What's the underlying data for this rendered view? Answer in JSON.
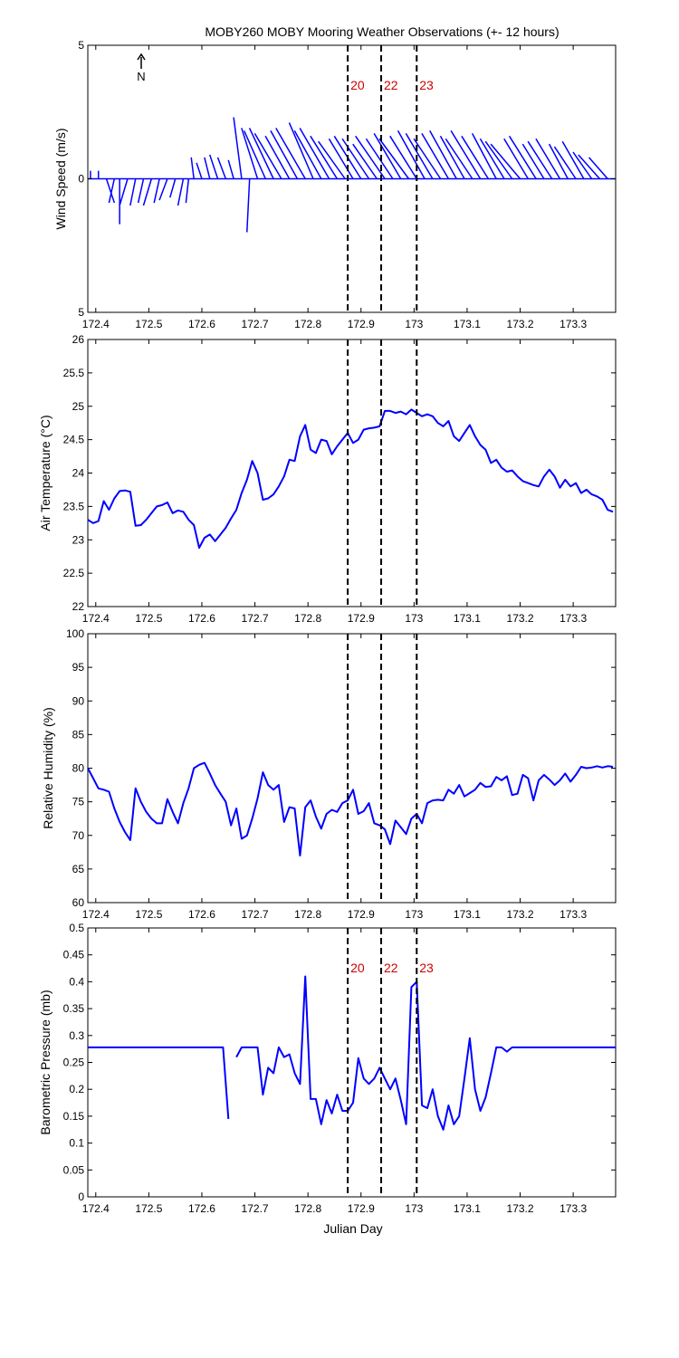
{
  "figure": {
    "title": "MOBY260 MOBY Mooring Weather Observations (+- 12 hours)",
    "north_label": "N",
    "xlabel": "Julian Day"
  },
  "chart_data": [
    {
      "type": "quiver",
      "ylabel": "Wind Speed (m/s)",
      "xlim": [
        172.385,
        173.38
      ],
      "ylim": [
        -5,
        5
      ],
      "yticks": [
        "5",
        "0",
        "5"
      ],
      "xticks": [
        172.4,
        172.5,
        172.6,
        172.7,
        172.8,
        172.9,
        173,
        173.1,
        173.2,
        173.3
      ],
      "marker_labels": [
        "20",
        "22",
        "23"
      ],
      "marker_x": [
        172.875,
        172.938,
        173.005
      ],
      "wind": {
        "x": [
          172.39,
          172.405,
          172.42,
          172.435,
          172.445,
          172.46,
          172.475,
          172.49,
          172.505,
          172.52,
          172.535,
          172.55,
          172.565,
          172.575,
          172.585,
          172.6,
          172.615,
          172.63,
          172.645,
          172.66,
          172.675,
          172.69,
          172.705,
          172.72,
          172.735,
          172.75,
          172.765,
          172.78,
          172.795,
          172.81,
          172.825,
          172.84,
          172.855,
          172.87,
          172.885,
          172.9,
          172.915,
          172.93,
          172.945,
          172.96,
          172.975,
          172.99,
          173.005,
          173.02,
          173.035,
          173.05,
          173.065,
          173.08,
          173.095,
          173.11,
          173.125,
          173.14,
          173.155,
          173.17,
          173.185,
          173.2,
          173.215,
          173.23,
          173.245,
          173.26,
          173.275,
          173.29,
          173.305,
          173.32,
          173.335,
          173.35,
          173.365
        ],
        "u": [
          0,
          0,
          0.3,
          -0.2,
          0,
          -0.3,
          -0.2,
          -0.2,
          -0.3,
          -0.2,
          -0.3,
          -0.2,
          -0.2,
          -0.1,
          -0.1,
          -0.2,
          -0.2,
          -0.3,
          -0.3,
          -0.2,
          -0.3,
          -0.1,
          -0.6,
          -0.8,
          -0.9,
          -1.0,
          -0.9,
          -1.0,
          -1.1,
          -0.9,
          -1.0,
          -1.1,
          -1.0,
          -1.0,
          -0.9,
          -1.0,
          -1.0,
          -0.9,
          -1.1,
          -1.0,
          -1.0,
          -1.1,
          -1.0,
          -1.0,
          -1.0,
          -1.0,
          -1.0,
          -1.0,
          -0.9,
          -1.0,
          -1.1,
          -1.0,
          -0.9,
          -0.9,
          -1.0,
          -1.1,
          -0.9,
          -1.0,
          -0.8,
          -0.9,
          -0.9,
          -0.7,
          -0.8,
          -0.8,
          -0.7,
          -0.8,
          -0.7
        ],
        "v": [
          0.3,
          0.3,
          -0.9,
          -0.9,
          -1.7,
          -1.0,
          -1.0,
          -0.9,
          -1.0,
          -0.9,
          -0.8,
          -0.7,
          -1.0,
          -0.9,
          0.8,
          0.6,
          0.8,
          0.9,
          0.8,
          0.7,
          2.3,
          -2.0,
          1.9,
          1.8,
          1.9,
          1.7,
          1.6,
          1.8,
          1.9,
          2.1,
          1.8,
          1.9,
          1.6,
          1.4,
          1.5,
          1.6,
          1.5,
          1.3,
          1.6,
          1.5,
          1.7,
          1.5,
          1.6,
          1.8,
          1.7,
          1.5,
          1.7,
          1.8,
          1.6,
          1.5,
          1.8,
          1.6,
          1.7,
          1.5,
          1.4,
          1.3,
          1.5,
          1.6,
          1.3,
          1.4,
          1.5,
          1.3,
          1.2,
          1.4,
          1.0,
          0.9,
          0.8
        ]
      }
    },
    {
      "type": "line",
      "ylabel": "Air Temperature (°C)",
      "xlim": [
        172.385,
        173.38
      ],
      "ylim": [
        22,
        26
      ],
      "yticks": [
        "22",
        "22.5",
        "23",
        "23.5",
        "24",
        "24.5",
        "25",
        "25.5",
        "26"
      ],
      "xticks": [
        172.4,
        172.5,
        172.6,
        172.7,
        172.8,
        172.9,
        173,
        173.1,
        173.2,
        173.3
      ],
      "marker_x": [
        172.875,
        172.938,
        173.005
      ],
      "x": [
        172.385,
        172.395,
        172.405,
        172.415,
        172.425,
        172.435,
        172.445,
        172.455,
        172.465,
        172.475,
        172.485,
        172.495,
        172.505,
        172.515,
        172.525,
        172.535,
        172.545,
        172.555,
        172.565,
        172.575,
        172.585,
        172.595,
        172.605,
        172.615,
        172.625,
        172.635,
        172.645,
        172.655,
        172.665,
        172.675,
        172.685,
        172.695,
        172.705,
        172.715,
        172.725,
        172.735,
        172.745,
        172.755,
        172.765,
        172.775,
        172.785,
        172.795,
        172.805,
        172.815,
        172.825,
        172.835,
        172.845,
        172.855,
        172.865,
        172.875,
        172.885,
        172.895,
        172.905,
        172.915,
        172.925,
        172.935,
        172.945,
        172.955,
        172.965,
        172.975,
        172.985,
        172.995,
        173.005,
        173.015,
        173.025,
        173.035,
        173.045,
        173.055,
        173.065,
        173.075,
        173.085,
        173.095,
        173.105,
        173.115,
        173.125,
        173.135,
        173.145,
        173.155,
        173.165,
        173.175,
        173.185,
        173.195,
        173.205,
        173.215,
        173.225,
        173.235,
        173.245,
        173.255,
        173.265,
        173.275,
        173.285,
        173.295,
        173.305,
        173.315,
        173.325,
        173.335,
        173.345,
        173.355,
        173.365,
        173.375
      ],
      "y": [
        23.3,
        23.25,
        23.28,
        23.58,
        23.45,
        23.62,
        23.73,
        23.74,
        23.72,
        23.21,
        23.22,
        23.3,
        23.4,
        23.5,
        23.52,
        23.56,
        23.4,
        23.44,
        23.42,
        23.3,
        23.22,
        22.88,
        23.03,
        23.08,
        22.98,
        23.08,
        23.18,
        23.32,
        23.45,
        23.7,
        23.9,
        24.18,
        24.0,
        23.6,
        23.62,
        23.68,
        23.8,
        23.95,
        24.2,
        24.18,
        24.55,
        24.72,
        24.35,
        24.3,
        24.5,
        24.48,
        24.28,
        24.4,
        24.5,
        24.6,
        24.45,
        24.5,
        24.65,
        24.67,
        24.68,
        24.7,
        24.93,
        24.93,
        24.9,
        24.92,
        24.88,
        24.95,
        24.9,
        24.85,
        24.88,
        24.85,
        24.75,
        24.7,
        24.78,
        24.55,
        24.48,
        24.6,
        24.72,
        24.55,
        24.42,
        24.35,
        24.15,
        24.2,
        24.08,
        24.02,
        24.04,
        23.95,
        23.88,
        23.85,
        23.82,
        23.8,
        23.95,
        24.05,
        23.95,
        23.78,
        23.9,
        23.8,
        23.85,
        23.7,
        23.75,
        23.68,
        23.65,
        23.6,
        23.45,
        23.42
      ]
    },
    {
      "type": "line",
      "ylabel": "Relative Humidity (%)",
      "xlim": [
        172.385,
        173.38
      ],
      "ylim": [
        60,
        100
      ],
      "yticks": [
        "60",
        "65",
        "70",
        "75",
        "80",
        "85",
        "90",
        "95",
        "100"
      ],
      "xticks": [
        172.4,
        172.5,
        172.6,
        172.7,
        172.8,
        172.9,
        173,
        173.1,
        173.2,
        173.3
      ],
      "marker_x": [
        172.875,
        172.938,
        173.005
      ],
      "x": [
        172.385,
        172.395,
        172.405,
        172.415,
        172.425,
        172.435,
        172.445,
        172.455,
        172.465,
        172.475,
        172.485,
        172.495,
        172.505,
        172.515,
        172.525,
        172.535,
        172.545,
        172.555,
        172.565,
        172.575,
        172.585,
        172.595,
        172.605,
        172.615,
        172.625,
        172.635,
        172.645,
        172.655,
        172.665,
        172.675,
        172.685,
        172.695,
        172.705,
        172.715,
        172.725,
        172.735,
        172.745,
        172.755,
        172.765,
        172.775,
        172.785,
        172.795,
        172.805,
        172.815,
        172.825,
        172.835,
        172.845,
        172.855,
        172.865,
        172.875,
        172.885,
        172.895,
        172.905,
        172.915,
        172.925,
        172.935,
        172.945,
        172.955,
        172.965,
        172.975,
        172.985,
        172.995,
        173.005,
        173.015,
        173.025,
        173.035,
        173.045,
        173.055,
        173.065,
        173.075,
        173.085,
        173.095,
        173.105,
        173.115,
        173.125,
        173.135,
        173.145,
        173.155,
        173.165,
        173.175,
        173.185,
        173.195,
        173.205,
        173.215,
        173.225,
        173.235,
        173.245,
        173.255,
        173.265,
        173.275,
        173.285,
        173.295,
        173.305,
        173.315,
        173.325,
        173.335,
        173.345,
        173.355,
        173.365,
        173.375
      ],
      "y": [
        80,
        78.5,
        77,
        76.8,
        76.5,
        74,
        72,
        70.5,
        69.3,
        77,
        75,
        73.5,
        72.5,
        71.8,
        71.8,
        75.4,
        73.5,
        71.8,
        74.8,
        77,
        80,
        80.5,
        80.8,
        79.2,
        77.5,
        76.2,
        75,
        71.5,
        74,
        69.5,
        70,
        72.5,
        75.5,
        79.4,
        77.5,
        76.8,
        77.5,
        72,
        74.2,
        74,
        67,
        74.2,
        75.2,
        72.8,
        71,
        73.2,
        73.8,
        73.5,
        74.8,
        75.2,
        76.8,
        73.2,
        73.6,
        74.8,
        71.8,
        71.5,
        70.9,
        68.7,
        72.2,
        71.2,
        70.2,
        72.5,
        73.2,
        71.8,
        74.8,
        75.2,
        75.3,
        75.2,
        76.8,
        76.2,
        77.5,
        75.8,
        76.3,
        76.8,
        77.8,
        77.2,
        77.3,
        78.7,
        78.2,
        78.8,
        76,
        76.2,
        79,
        78.5,
        75.2,
        78.2,
        79,
        78.3,
        77.5,
        78.2,
        79.2,
        78,
        79,
        80.2,
        80,
        80.1,
        80.3,
        80.1,
        80.3,
        80.2
      ]
    },
    {
      "type": "line",
      "ylabel": "Barometric Pressure (mb)",
      "xlabel": "Julian Day",
      "xlim": [
        172.385,
        173.38
      ],
      "ylim": [
        0,
        0.5
      ],
      "yticks": [
        "0",
        "0.05",
        "0.1",
        "0.15",
        "0.2",
        "0.25",
        "0.3",
        "0.35",
        "0.4",
        "0.45",
        "0.5"
      ],
      "xticks": [
        172.4,
        172.5,
        172.6,
        172.7,
        172.8,
        172.9,
        173,
        173.1,
        173.2,
        173.3
      ],
      "marker_labels": [
        "20",
        "22",
        "23"
      ],
      "marker_x": [
        172.875,
        172.938,
        173.005
      ],
      "segments": [
        {
          "x": [
            172.385,
            172.64,
            172.65
          ],
          "y": [
            0.278,
            0.278,
            0.145
          ]
        },
        {
          "x": [
            172.665,
            172.675,
            172.685,
            172.695,
            172.705,
            172.715,
            172.725,
            172.735,
            172.745,
            172.755,
            172.765,
            172.775,
            172.785,
            172.795,
            172.805,
            172.815,
            172.825,
            172.835,
            172.845,
            172.855,
            172.865,
            172.875,
            172.885,
            172.895,
            172.905,
            172.915,
            172.925,
            172.935,
            172.945,
            172.955,
            172.965,
            172.975,
            172.985,
            172.995,
            173.005,
            173.015,
            173.025,
            173.035,
            173.045,
            173.055,
            173.065,
            173.075,
            173.085,
            173.095,
            173.105,
            173.115,
            173.125,
            173.135,
            173.145,
            173.155,
            173.165,
            173.175,
            173.185,
            173.195,
            173.38
          ],
          "y": [
            0.26,
            0.278,
            0.278,
            0.278,
            0.278,
            0.19,
            0.24,
            0.23,
            0.278,
            0.26,
            0.265,
            0.23,
            0.21,
            0.41,
            0.182,
            0.182,
            0.135,
            0.18,
            0.155,
            0.19,
            0.16,
            0.16,
            0.175,
            0.258,
            0.22,
            0.21,
            0.22,
            0.24,
            0.22,
            0.2,
            0.22,
            0.18,
            0.135,
            0.39,
            0.4,
            0.17,
            0.165,
            0.2,
            0.15,
            0.125,
            0.17,
            0.135,
            0.15,
            0.22,
            0.295,
            0.2,
            0.16,
            0.185,
            0.23,
            0.278,
            0.278,
            0.27,
            0.278,
            0.278,
            0.278
          ]
        }
      ]
    }
  ]
}
